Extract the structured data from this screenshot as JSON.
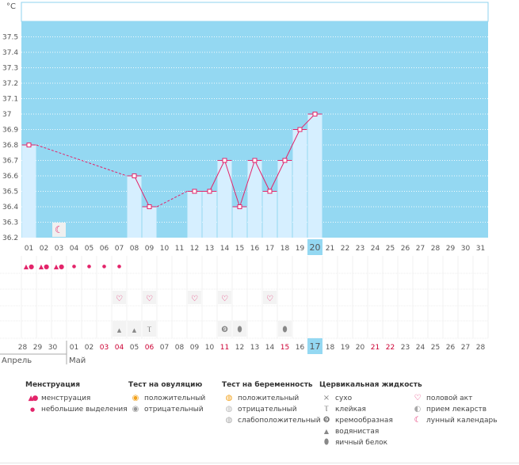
{
  "chart_data": {
    "type": "bar+line",
    "title": "",
    "ylabel": "°C",
    "ylim": [
      36.2,
      37.6
    ],
    "yticks": [
      "37.5",
      "37.4",
      "37.3",
      "37.2",
      "37.1",
      "37",
      "36.9",
      "36.8",
      "36.7",
      "36.6",
      "36.5",
      "36.4",
      "36.3",
      "36.2"
    ],
    "cycle_days": [
      "01",
      "02",
      "03",
      "04",
      "05",
      "06",
      "07",
      "08",
      "09",
      "10",
      "11",
      "12",
      "13",
      "14",
      "15",
      "16",
      "17",
      "18",
      "19",
      "20",
      "21",
      "22",
      "23",
      "24",
      "25",
      "26",
      "27",
      "28",
      "29",
      "30",
      "31"
    ],
    "values": [
      36.8,
      null,
      null,
      null,
      null,
      null,
      null,
      36.6,
      36.4,
      null,
      null,
      36.5,
      36.5,
      36.7,
      36.4,
      36.7,
      36.5,
      36.7,
      36.9,
      37.0,
      null,
      null,
      null,
      null,
      null,
      null,
      null,
      null,
      null,
      null,
      null
    ],
    "current_day": "20",
    "dates": [
      "28",
      "29",
      "30",
      "01",
      "02",
      "03",
      "04",
      "05",
      "06",
      "07",
      "08",
      "09",
      "10",
      "11",
      "12",
      "13",
      "14",
      "15",
      "16",
      "17",
      "18",
      "19",
      "20",
      "21",
      "22",
      "23",
      "24",
      "25",
      "26",
      "27",
      "28"
    ],
    "red_dates": [
      5,
      6,
      8,
      13,
      17,
      23,
      24
    ],
    "current_date": "17",
    "month_labels": [
      "Апрель",
      "Май"
    ],
    "lunar_day": "03",
    "rows": {
      "menstruation_heavy_days": [
        "01",
        "02",
        "03"
      ],
      "menstruation_light_days": [
        "04",
        "05",
        "06",
        "07"
      ],
      "intercourse_days": [
        "07",
        "09",
        "12",
        "14",
        "17"
      ],
      "fluid_watery_days": [
        "07",
        "08"
      ],
      "fluid_sticky_days": [
        "09"
      ],
      "fluid_creamy_days": [
        "14"
      ],
      "fluid_eggwhite_days": [
        "15",
        "18"
      ]
    }
  },
  "legend": {
    "menstruation": {
      "title": "Менструация",
      "items": [
        "менструация",
        "небольшие выделения"
      ]
    },
    "ovulation": {
      "title": "Тест на овуляцию",
      "items": [
        "положительный",
        "отрицательный"
      ]
    },
    "pregnancy": {
      "title": "Тест на беременность",
      "items": [
        "положительный",
        "отрицательный",
        "слабоположительный"
      ]
    },
    "cervical": {
      "title": "Цервикальная жидкость",
      "items": [
        "сухо",
        "клейкая",
        "кремообразная",
        "водянистая",
        "яичный белок"
      ]
    },
    "other": {
      "items": [
        "половой акт",
        "прием лекарств",
        "лунный календарь"
      ]
    }
  },
  "colors": {
    "plot_bg": "#94d8f2",
    "bar": "#d6efff",
    "line": "#e3246a",
    "current_day": "#94d8f2",
    "red_text": "#cc0033"
  }
}
